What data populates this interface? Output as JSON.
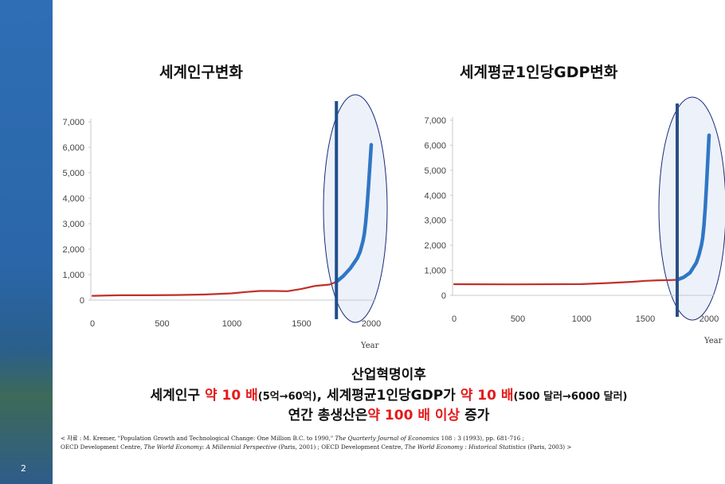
{
  "slide": {
    "page_number": "2"
  },
  "chart_data": [
    {
      "type": "line",
      "title": "세계인구변화",
      "xlabel": "Year",
      "ylabel": "",
      "xlim": [
        0,
        2000
      ],
      "ylim": [
        0,
        7000
      ],
      "x_ticks": [
        "0",
        "500",
        "1000",
        "1500",
        "2000"
      ],
      "y_ticks": [
        "0",
        "1,000",
        "2,000",
        "3,000",
        "4,000",
        "5,000",
        "6,000",
        "7,000"
      ],
      "grid": false,
      "series": [
        {
          "color": "#c0302a",
          "x": [
            0,
            200,
            400,
            600,
            800,
            1000,
            1100,
            1200,
            1300,
            1400,
            1500,
            1600,
            1700,
            1750
          ],
          "values": [
            170,
            190,
            190,
            200,
            220,
            265,
            320,
            360,
            360,
            350,
            440,
            560,
            610,
            720
          ]
        },
        {
          "color": "#2f77c4",
          "x": [
            1750,
            1800,
            1850,
            1900,
            1920,
            1940,
            1950,
            1960,
            1970,
            1980,
            1990,
            2000
          ],
          "values": [
            720,
            950,
            1250,
            1650,
            1900,
            2300,
            2600,
            3050,
            3700,
            4450,
            5300,
            6100
          ]
        }
      ],
      "highlight": {
        "marker": "vertical-bar",
        "color": "#1e4f8c",
        "x": 1750
      }
    },
    {
      "type": "line",
      "title": "세계평균1인당GDP변화",
      "xlabel": "Year",
      "ylabel": "",
      "xlim": [
        0,
        2000
      ],
      "ylim": [
        0,
        7000
      ],
      "x_ticks": [
        "0",
        "500",
        "1000",
        "1500",
        "2000"
      ],
      "y_ticks": [
        "0",
        "1,000",
        "2,000",
        "3,000",
        "4,000",
        "5,000",
        "6,000",
        "7,000"
      ],
      "grid": false,
      "series": [
        {
          "color": "#c0302a",
          "x": [
            0,
            500,
            1000,
            1200,
            1400,
            1500,
            1600,
            1700,
            1750
          ],
          "values": [
            445,
            440,
            450,
            490,
            540,
            580,
            600,
            610,
            620
          ]
        },
        {
          "color": "#2f77c4",
          "x": [
            1750,
            1800,
            1850,
            1900,
            1920,
            1940,
            1950,
            1960,
            1970,
            1980,
            1990,
            2000
          ],
          "values": [
            620,
            720,
            900,
            1300,
            1600,
            2000,
            2300,
            2800,
            3500,
            4400,
            5400,
            6400
          ]
        }
      ],
      "highlight": {
        "marker": "vertical-bar",
        "color": "#2a4f86",
        "x": 1750
      }
    }
  ],
  "summary": {
    "line1": "산업혁명이후",
    "l2_a": "세계인구 ",
    "l2_b": "약 10 배",
    "l2_c": "(5억→60억)",
    "l2_d": ", 세계평균1인당GDP가 ",
    "l2_e": "약 10 배",
    "l2_f": "(500 달러→6000 달러)",
    "l3_a": "연간 총생산은",
    "l3_b": "약 100 배 이상",
    "l3_c": " 증가"
  },
  "source": {
    "l1_a": "< 자료 : M. Kremer, \"Population Growth and Technological Change: One Million B.C. to 1990,\" ",
    "l1_b": "The Quarterly Journal of Economics",
    "l1_c": "  108 : 3 (1993), pp. 681-716 ;",
    "l2_a": "OECD Development Centre, ",
    "l2_b": "The World Economy: A Millennial Perspective",
    "l2_c": "  (Paris, 2001) ; OECD Development Centre, ",
    "l2_d": "The World Economy : Historical Statistics",
    "l2_e": "  (Paris, 2003) >"
  }
}
